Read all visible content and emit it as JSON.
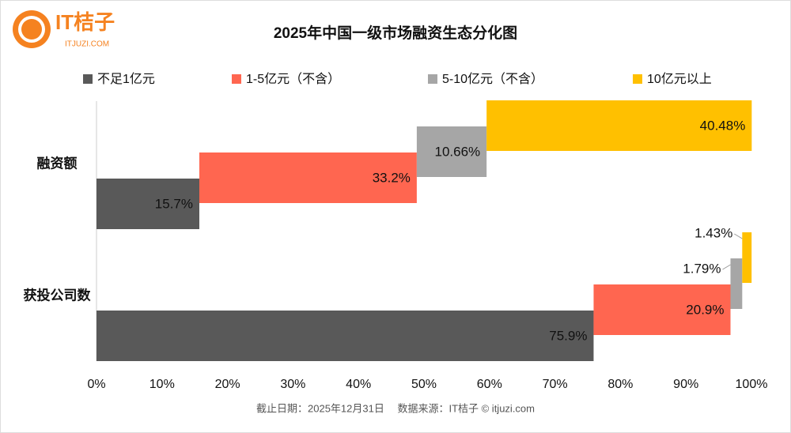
{
  "brand": {
    "name": "IT桔子",
    "site": "ITJUZI.COM"
  },
  "chart_data": {
    "type": "staggered-bar",
    "title": "2025年中国一级市场融资生态分化图",
    "categories": [
      "融资额",
      "获投公司数"
    ],
    "series": [
      {
        "name": "不足1亿元",
        "color": "#595959",
        "values": [
          15.7,
          75.9
        ],
        "value_labels": [
          "15.7%",
          "75.9%"
        ]
      },
      {
        "name": "1-5亿元（不含）",
        "color": "#ff6650",
        "values": [
          33.2,
          20.9
        ],
        "value_labels": [
          "33.2%",
          "20.9%"
        ]
      },
      {
        "name": "5-10亿元（不含）",
        "color": "#a6a6a6",
        "values": [
          10.66,
          1.79
        ],
        "value_labels": [
          "10.66%",
          "1.79%"
        ]
      },
      {
        "name": "10亿元以上",
        "color": "#ffc000",
        "values": [
          40.48,
          1.43
        ],
        "value_labels": [
          "40.48%",
          "1.43%"
        ]
      }
    ],
    "xlim": [
      0,
      100
    ],
    "xticks": [
      {
        "value": 0,
        "label": "0%"
      },
      {
        "value": 10,
        "label": "10%"
      },
      {
        "value": 20,
        "label": "20%"
      },
      {
        "value": 30,
        "label": "30%"
      },
      {
        "value": 40,
        "label": "40%"
      },
      {
        "value": 50,
        "label": "50%"
      },
      {
        "value": 60,
        "label": "60%"
      },
      {
        "value": 70,
        "label": "70%"
      },
      {
        "value": 80,
        "label": "80%"
      },
      {
        "value": 90,
        "label": "90%"
      },
      {
        "value": 100,
        "label": "100%"
      }
    ],
    "legend": "top",
    "source": "截止日期：2025年12月31日　 数据来源：IT桔子 © itjuzi.com"
  }
}
